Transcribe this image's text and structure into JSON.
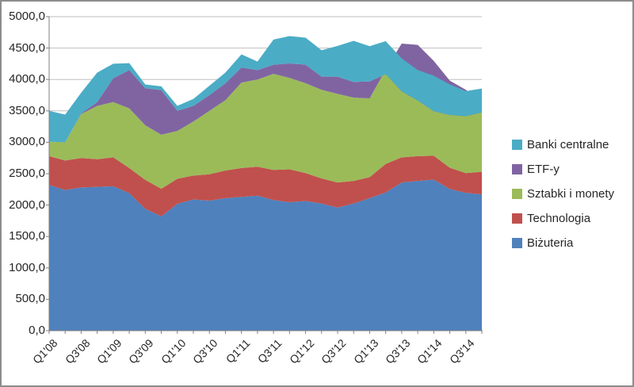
{
  "chart_data": {
    "type": "area",
    "stacked": true,
    "title": "",
    "xlabel": "",
    "ylabel": "",
    "categories": [
      "Q1'08",
      "Q2'08",
      "Q3'08",
      "Q4'08",
      "Q1'09",
      "Q2'09",
      "Q3'09",
      "Q4'09",
      "Q1'10",
      "Q2'10",
      "Q3'10",
      "Q4'10",
      "Q1'11",
      "Q2'11",
      "Q3'11",
      "Q4'11",
      "Q1'12",
      "Q2'12",
      "Q3'12",
      "Q4'12",
      "Q1'13",
      "Q2'13",
      "Q3'13",
      "Q4'13",
      "Q1'14",
      "Q2'14",
      "Q3'14",
      "Q4'14"
    ],
    "series": [
      {
        "name": "Biżuteria",
        "color": "#4F81BD",
        "values": [
          2320,
          2240,
          2280,
          2290,
          2300,
          2190,
          1940,
          1820,
          2020,
          2090,
          2070,
          2110,
          2130,
          2150,
          2080,
          2045,
          2065,
          2025,
          1960,
          2025,
          2110,
          2200,
          2360,
          2385,
          2405,
          2255,
          2195,
          2170
        ]
      },
      {
        "name": "Technologia",
        "color": "#C0504D",
        "values": [
          460,
          470,
          470,
          440,
          460,
          400,
          460,
          440,
          400,
          380,
          420,
          440,
          460,
          460,
          480,
          525,
          445,
          400,
          400,
          360,
          335,
          455,
          400,
          395,
          380,
          340,
          315,
          360
        ]
      },
      {
        "name": "Sztabki i monety",
        "color": "#9BBB59",
        "values": [
          230,
          290,
          700,
          850,
          880,
          950,
          870,
          860,
          760,
          860,
          1010,
          1120,
          1360,
          1390,
          1530,
          1455,
          1430,
          1410,
          1410,
          1325,
          1255,
          1500,
          1810,
          1770,
          1510,
          1385,
          1325,
          1095
        ]
      },
      {
        "name": "ETF-y",
        "color": "#8064A2",
        "values": [
          0,
          0,
          10,
          60,
          380,
          610,
          590,
          710,
          320,
          250,
          250,
          270,
          240,
          150,
          145,
          230,
          295,
          210,
          275,
          250,
          270,
          -70,
          -760,
          -885,
          -800,
          -545,
          -420,
          -150
        ]
      },
      {
        "name": "Banki centralne",
        "color": "#4BACC6",
        "values": [
          490,
          440,
          330,
          470,
          230,
          110,
          60,
          60,
          80,
          110,
          150,
          170,
          210,
          135,
          400,
          435,
          430,
          420,
          490,
          655,
          560,
          525,
          525,
          485,
          565,
          485,
          400,
          380
        ]
      }
    ],
    "ylim": [
      0,
      5000
    ],
    "y_tick_step": 500,
    "y_tick_labels": [
      "0,0",
      "500,0",
      "1000,0",
      "1500,0",
      "2000,0",
      "2500,0",
      "3000,0",
      "3500,0",
      "4000,0",
      "4500,0",
      "5000,0"
    ],
    "x_label_interval": 2,
    "grid": "horizontal",
    "legend_position": "right",
    "legend_order": [
      "Banki centralne",
      "ETF-y",
      "Sztabki i monety",
      "Technologia",
      "Biżuteria"
    ]
  },
  "colors": {
    "background": "#FFFFFF",
    "grid": "#BFBFBF",
    "axis": "#808080",
    "text": "#262626",
    "frame_border": "#8C8C8C"
  }
}
